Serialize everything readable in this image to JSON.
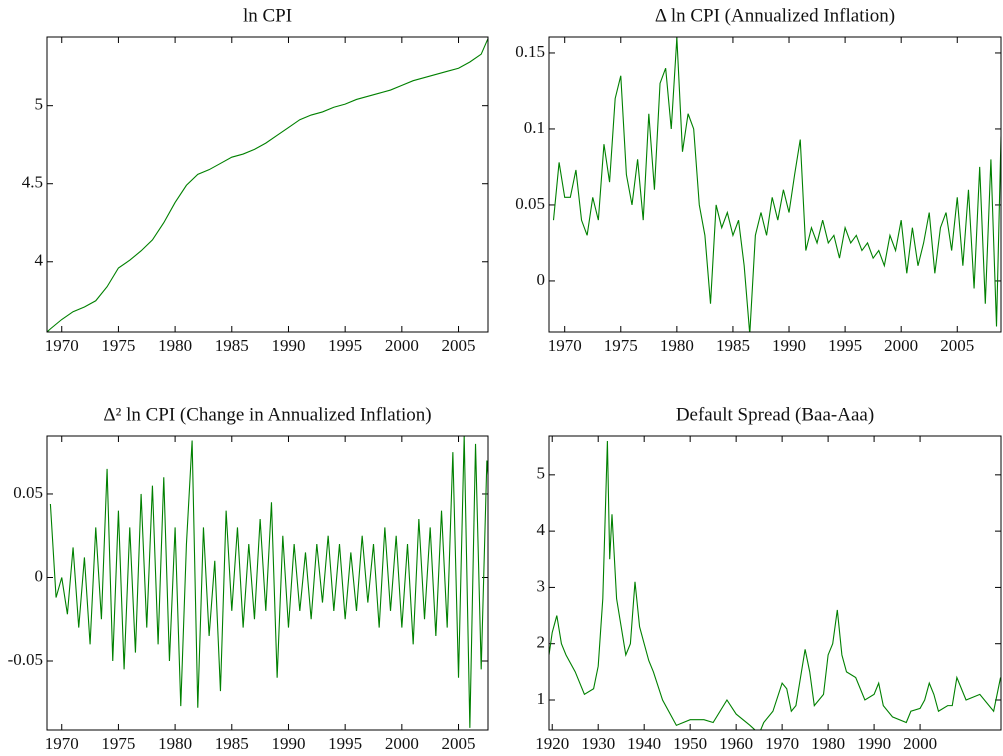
{
  "chart_data": [
    {
      "type": "line",
      "title": "ln CPI",
      "color": "#008000",
      "x": [
        1968.7,
        1969,
        1970,
        1971,
        1972,
        1973,
        1974,
        1975,
        1976,
        1977,
        1978,
        1979,
        1980,
        1981,
        1982,
        1983,
        1984,
        1985,
        1986,
        1987,
        1988,
        1989,
        1990,
        1991,
        1992,
        1993,
        1994,
        1995,
        1996,
        1997,
        1998,
        1999,
        2000,
        2001,
        2002,
        2003,
        2004,
        2005,
        2006,
        2007,
        2007.6
      ],
      "values": [
        3.55,
        3.57,
        3.63,
        3.68,
        3.71,
        3.75,
        3.84,
        3.96,
        4.01,
        4.07,
        4.14,
        4.25,
        4.38,
        4.49,
        4.56,
        4.59,
        4.63,
        4.67,
        4.69,
        4.72,
        4.76,
        4.81,
        4.86,
        4.91,
        4.94,
        4.96,
        4.99,
        5.01,
        5.04,
        5.06,
        5.08,
        5.1,
        5.13,
        5.16,
        5.18,
        5.2,
        5.22,
        5.24,
        5.28,
        5.33,
        5.43
      ],
      "xlim": [
        1968.7,
        2007.6
      ],
      "ylim": [
        3.55,
        5.44
      ],
      "xticks": [
        1970,
        1975,
        1980,
        1985,
        1990,
        1995,
        2000,
        2005
      ],
      "yticks": [
        4,
        4.5,
        5
      ]
    },
    {
      "type": "line",
      "title": "Δ ln CPI (Annualized Inflation)",
      "color": "#008000",
      "x": [
        1969,
        1969.5,
        1970,
        1970.5,
        1971,
        1971.5,
        1972,
        1972.5,
        1973,
        1973.5,
        1974,
        1974.5,
        1975,
        1975.5,
        1976,
        1976.5,
        1977,
        1977.5,
        1978,
        1978.5,
        1979,
        1979.5,
        1980,
        1980.5,
        1981,
        1981.5,
        1982,
        1982.5,
        1983,
        1983.5,
        1984,
        1984.5,
        1985,
        1985.5,
        1986,
        1986.5,
        1987,
        1987.5,
        1988,
        1988.5,
        1989,
        1989.5,
        1990,
        1990.5,
        1991,
        1991.5,
        1992,
        1992.5,
        1993,
        1993.5,
        1994,
        1994.5,
        1995,
        1995.5,
        1996,
        1996.5,
        1997,
        1997.5,
        1998,
        1998.5,
        1999,
        1999.5,
        2000,
        2000.5,
        2001,
        2001.5,
        2002,
        2002.5,
        2003,
        2003.5,
        2004,
        2004.5,
        2005,
        2005.5,
        2006,
        2006.5,
        2007,
        2007.5,
        2008,
        2008.5,
        2008.9
      ],
      "values": [
        0.04,
        0.078,
        0.055,
        0.055,
        0.073,
        0.04,
        0.03,
        0.055,
        0.04,
        0.09,
        0.065,
        0.12,
        0.135,
        0.07,
        0.05,
        0.08,
        0.04,
        0.11,
        0.06,
        0.13,
        0.14,
        0.1,
        0.16,
        0.085,
        0.11,
        0.1,
        0.05,
        0.03,
        -0.015,
        0.05,
        0.035,
        0.045,
        0.03,
        0.04,
        0.01,
        -0.035,
        0.03,
        0.045,
        0.03,
        0.055,
        0.04,
        0.06,
        0.045,
        0.07,
        0.093,
        0.02,
        0.035,
        0.025,
        0.04,
        0.025,
        0.03,
        0.015,
        0.035,
        0.025,
        0.03,
        0.02,
        0.025,
        0.015,
        0.02,
        0.01,
        0.03,
        0.02,
        0.04,
        0.005,
        0.035,
        0.01,
        0.025,
        0.045,
        0.005,
        0.035,
        0.045,
        0.02,
        0.055,
        0.01,
        0.06,
        -0.005,
        0.075,
        -0.015,
        0.08,
        -0.03,
        0.095
      ],
      "xlim": [
        1968.6,
        2008.9
      ],
      "ylim": [
        -0.0336,
        0.1605
      ],
      "xticks": [
        1970,
        1975,
        1980,
        1985,
        1990,
        1995,
        2000,
        2005
      ],
      "yticks": [
        0,
        0.05,
        0.1,
        0.15
      ]
    },
    {
      "type": "line",
      "title": "Δ² ln CPI (Change in Annualized Inflation)",
      "color": "#008000",
      "x": [
        1969,
        1969.5,
        1970,
        1970.5,
        1971,
        1971.5,
        1972,
        1972.5,
        1973,
        1973.5,
        1974,
        1974.5,
        1975,
        1975.5,
        1976,
        1976.5,
        1977,
        1977.5,
        1978,
        1978.5,
        1979,
        1979.5,
        1980,
        1980.5,
        1981,
        1981.5,
        1982,
        1982.5,
        1983,
        1983.5,
        1984,
        1984.5,
        1985,
        1985.5,
        1986,
        1986.5,
        1987,
        1987.5,
        1988,
        1988.5,
        1989,
        1989.5,
        1990,
        1990.5,
        1991,
        1991.5,
        1992,
        1992.5,
        1993,
        1993.5,
        1994,
        1994.5,
        1995,
        1995.5,
        1996,
        1996.5,
        1997,
        1997.5,
        1998,
        1998.5,
        1999,
        1999.5,
        2000,
        2000.5,
        2001,
        2001.5,
        2002,
        2002.5,
        2003,
        2003.5,
        2004,
        2004.5,
        2005,
        2005.5,
        2006,
        2006.5,
        2007,
        2007.5,
        2008
      ],
      "values": [
        0.044,
        -0.012,
        0.0,
        -0.022,
        0.018,
        -0.03,
        0.012,
        -0.04,
        0.03,
        -0.025,
        0.065,
        -0.05,
        0.04,
        -0.055,
        0.03,
        -0.045,
        0.05,
        -0.03,
        0.055,
        -0.04,
        0.06,
        -0.05,
        0.03,
        -0.077,
        0.02,
        0.082,
        -0.078,
        0.03,
        -0.035,
        0.01,
        -0.068,
        0.04,
        -0.02,
        0.03,
        -0.03,
        0.02,
        -0.025,
        0.035,
        -0.02,
        0.045,
        -0.06,
        0.025,
        -0.03,
        0.02,
        -0.02,
        0.015,
        -0.025,
        0.02,
        -0.015,
        0.025,
        -0.02,
        0.02,
        -0.025,
        0.015,
        -0.02,
        0.025,
        -0.015,
        0.02,
        -0.03,
        0.03,
        -0.02,
        0.025,
        -0.03,
        0.02,
        -0.04,
        0.035,
        -0.025,
        0.03,
        -0.035,
        0.04,
        -0.03,
        0.075,
        -0.06,
        0.085,
        -0.09,
        0.08,
        -0.055,
        0.07,
        0.028
      ],
      "xlim": [
        1968.7,
        2007.6
      ],
      "ylim": [
        -0.0913,
        0.0847
      ],
      "xticks": [
        1970,
        1975,
        1980,
        1985,
        1990,
        1995,
        2000,
        2005
      ],
      "yticks": [
        -0.05,
        0,
        0.05
      ]
    },
    {
      "type": "line",
      "title": "Default Spread (Baa-Aaa)",
      "color": "#008000",
      "x": [
        1919.3,
        1920,
        1921,
        1922,
        1923,
        1925,
        1927,
        1929,
        1930,
        1931,
        1932,
        1932.5,
        1933,
        1934,
        1935,
        1936,
        1937,
        1938,
        1939,
        1940,
        1941,
        1942,
        1944,
        1946,
        1947,
        1950,
        1953,
        1955,
        1958,
        1960,
        1963,
        1965,
        1966,
        1968,
        1970,
        1971,
        1972,
        1973,
        1975,
        1976,
        1977,
        1979,
        1980,
        1981,
        1982,
        1983,
        1984,
        1986,
        1988,
        1990,
        1991,
        1992,
        1994,
        1997,
        1998,
        2000,
        2001,
        2002,
        2003,
        2004,
        2006,
        2007,
        2008,
        2010,
        2013,
        2016,
        2017.5
      ],
      "values": [
        1.8,
        2.2,
        2.5,
        2.0,
        1.8,
        1.5,
        1.1,
        1.2,
        1.6,
        2.8,
        5.6,
        3.5,
        4.3,
        2.8,
        2.3,
        1.8,
        2.0,
        3.1,
        2.3,
        2.0,
        1.7,
        1.5,
        1.0,
        0.7,
        0.55,
        0.65,
        0.65,
        0.6,
        1.0,
        0.75,
        0.55,
        0.4,
        0.6,
        0.8,
        1.3,
        1.2,
        0.8,
        0.9,
        1.9,
        1.5,
        0.9,
        1.1,
        1.8,
        2.0,
        2.6,
        1.8,
        1.5,
        1.4,
        1.0,
        1.1,
        1.3,
        0.9,
        0.7,
        0.6,
        0.8,
        0.85,
        1.0,
        1.3,
        1.1,
        0.8,
        0.9,
        0.9,
        1.4,
        1.0,
        1.1,
        0.8,
        1.4
      ],
      "xlim": [
        1919.3,
        2017.6
      ],
      "ylim": [
        0.467,
        5.69
      ],
      "xticks": [
        1920,
        1930,
        1940,
        1950,
        1960,
        1970,
        1980,
        1990,
        2000
      ],
      "yticks": [
        1,
        2,
        3,
        4,
        5
      ]
    }
  ]
}
